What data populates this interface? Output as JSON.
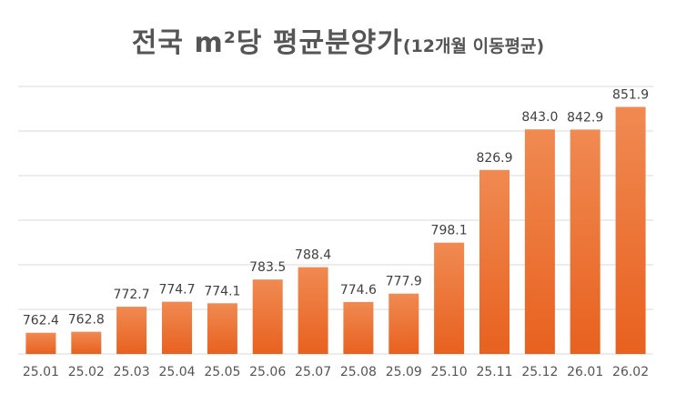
{
  "chart_data": {
    "type": "bar",
    "title": "전국 m²당 평균분양가",
    "subtitle": "(12개월 이동평균)",
    "xlabel": "",
    "ylabel": "",
    "categories": [
      "25.01",
      "25.02",
      "25.03",
      "25.04",
      "25.05",
      "25.06",
      "25.07",
      "25.08",
      "25.09",
      "25.10",
      "25.11",
      "25.12",
      "26.01",
      "26.02"
    ],
    "values": [
      762.4,
      762.8,
      772.7,
      774.7,
      774.1,
      783.5,
      788.4,
      774.6,
      777.9,
      798.1,
      826.9,
      843.0,
      842.9,
      851.9
    ],
    "value_labels": [
      "762.4",
      "762.8",
      "772.7",
      "774.7",
      "774.1",
      "783.5",
      "788.4",
      "774.6",
      "777.9",
      "798.1",
      "826.9",
      "843.0",
      "842.9",
      "851.9"
    ],
    "ylim": [
      754,
      860
    ],
    "grid": true,
    "legend": "none",
    "bar_color_top": "#f08a52",
    "bar_color_bottom": "#e8611f",
    "grid_color": "#d9d9d9"
  }
}
